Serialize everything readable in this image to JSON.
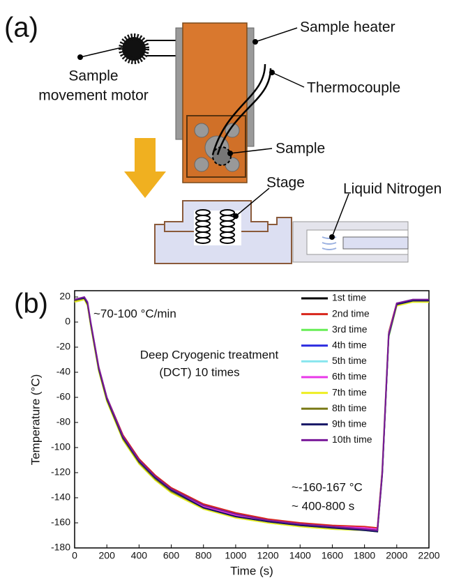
{
  "diagram": {
    "panel_label": "(a)",
    "sample_heater": "Sample heater",
    "thermocouple": "Thermocouple",
    "sample": "Sample",
    "stage": "Stage",
    "liquid_nitrogen": "Liquid Nitrogen",
    "motor": [
      "Sample",
      "movement motor"
    ]
  },
  "chart_data": {
    "type": "line",
    "panel_label": "(b)",
    "xlabel": "Time (s)",
    "ylabel": "Temperature (°C)",
    "annotations": [
      "~70-100 °C/min",
      "Deep Cryogenic treatment",
      "(DCT) 10 times",
      "~-160-167 °C",
      "~ 400-800 s"
    ],
    "xlim": [
      0,
      2200
    ],
    "ylim": [
      -180,
      25
    ],
    "xticks": [
      0,
      200,
      400,
      600,
      800,
      1000,
      1200,
      1400,
      1600,
      1800,
      2000,
      2200
    ],
    "yticks": [
      20,
      0,
      -20,
      -40,
      -60,
      -80,
      -100,
      -120,
      -140,
      -160,
      -180
    ],
    "x": [
      0,
      60,
      80,
      100,
      150,
      200,
      300,
      400,
      500,
      600,
      800,
      1000,
      1200,
      1400,
      1600,
      1800,
      1880,
      1910,
      1950,
      2000,
      2100,
      2200
    ],
    "series": [
      {
        "name": "1st time",
        "color": "#000000",
        "values": [
          16,
          18,
          14,
          -2,
          -38,
          -62,
          -93,
          -112,
          -125,
          -135,
          -148,
          -155,
          -159,
          -162,
          -164,
          -165,
          -166,
          -120,
          -10,
          14,
          17,
          17
        ]
      },
      {
        "name": "2nd time",
        "color": "#d8261c",
        "values": [
          17,
          19,
          15,
          -1,
          -36,
          -60,
          -90,
          -109,
          -122,
          -132,
          -145,
          -152,
          -157,
          -160,
          -162,
          -163,
          -164,
          -118,
          -8,
          15,
          17,
          17
        ]
      },
      {
        "name": "3rd time",
        "color": "#66ee55",
        "values": [
          16,
          18,
          14,
          -3,
          -39,
          -63,
          -94,
          -113,
          -126,
          -136,
          -149,
          -156,
          -160,
          -163,
          -165,
          -166,
          -167,
          -122,
          -12,
          13,
          16,
          16
        ]
      },
      {
        "name": "4th time",
        "color": "#2a2ae0",
        "values": [
          17,
          19,
          15,
          -2,
          -37,
          -61,
          -92,
          -111,
          -124,
          -134,
          -147,
          -154,
          -159,
          -162,
          -164,
          -165,
          -166,
          -121,
          -10,
          14,
          17,
          17
        ]
      },
      {
        "name": "5th time",
        "color": "#88e6ee",
        "values": [
          16,
          18,
          14,
          -2,
          -38,
          -62,
          -93,
          -112,
          -125,
          -135,
          -148,
          -155,
          -159,
          -162,
          -164,
          -165,
          -166,
          -119,
          -9,
          14,
          17,
          17
        ]
      },
      {
        "name": "6th time",
        "color": "#e838e8",
        "values": [
          17,
          18,
          14,
          -2,
          -37,
          -61,
          -92,
          -111,
          -124,
          -134,
          -147,
          -154,
          -158,
          -161,
          -163,
          -164,
          -165,
          -120,
          -10,
          14,
          17,
          17
        ]
      },
      {
        "name": "7th time",
        "color": "#eeee22",
        "values": [
          16,
          18,
          13,
          -3,
          -39,
          -63,
          -94,
          -113,
          -126,
          -136,
          -149,
          -156,
          -160,
          -163,
          -165,
          -166,
          -167,
          -121,
          -11,
          13,
          16,
          16
        ]
      },
      {
        "name": "8th time",
        "color": "#7a7a18",
        "values": [
          17,
          19,
          14,
          -2,
          -38,
          -62,
          -93,
          -112,
          -125,
          -135,
          -148,
          -155,
          -159,
          -162,
          -164,
          -165,
          -166,
          -120,
          -10,
          14,
          17,
          17
        ]
      },
      {
        "name": "9th time",
        "color": "#141464",
        "values": [
          18,
          19,
          15,
          -1,
          -37,
          -61,
          -92,
          -111,
          -124,
          -134,
          -148,
          -155,
          -159,
          -162,
          -164,
          -166,
          -167,
          -122,
          -11,
          14,
          17,
          17
        ]
      },
      {
        "name": "10th time",
        "color": "#7a1a9a",
        "values": [
          18,
          20,
          16,
          0,
          -36,
          -60,
          -91,
          -110,
          -123,
          -133,
          -146,
          -153,
          -158,
          -161,
          -163,
          -165,
          -166,
          -121,
          -10,
          15,
          18,
          18
        ]
      }
    ]
  }
}
